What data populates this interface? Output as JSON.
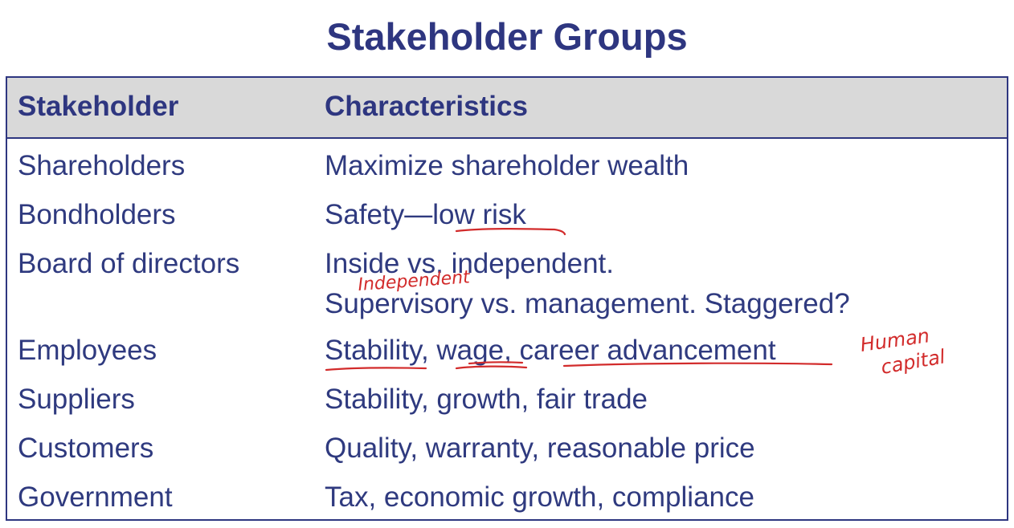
{
  "title": "Stakeholder Groups",
  "table": {
    "headers": [
      "Stakeholder",
      "Characteristics"
    ],
    "rows": [
      {
        "stakeholder": "Shareholders",
        "characteristics": [
          "Maximize shareholder wealth"
        ]
      },
      {
        "stakeholder": "Bondholders",
        "characteristics": [
          "Safety—low risk"
        ]
      },
      {
        "stakeholder": "Board of directors",
        "characteristics": [
          "Inside vs. independent.",
          "Supervisory vs. management. Staggered?"
        ]
      },
      {
        "stakeholder": "Employees",
        "characteristics": [
          "Stability, wage, career advancement"
        ]
      },
      {
        "stakeholder": "Suppliers",
        "characteristics": [
          "Stability, growth, fair trade"
        ]
      },
      {
        "stakeholder": "Customers",
        "characteristics": [
          "Quality, warranty, reasonable price"
        ]
      },
      {
        "stakeholder": "Government",
        "characteristics": [
          "Tax, economic growth, compliance"
        ]
      }
    ]
  },
  "annotations": {
    "independent_note": "Independent",
    "human_capital_line1": "Human",
    "human_capital_line2": "capital",
    "ink_color": "#d22b2b"
  }
}
